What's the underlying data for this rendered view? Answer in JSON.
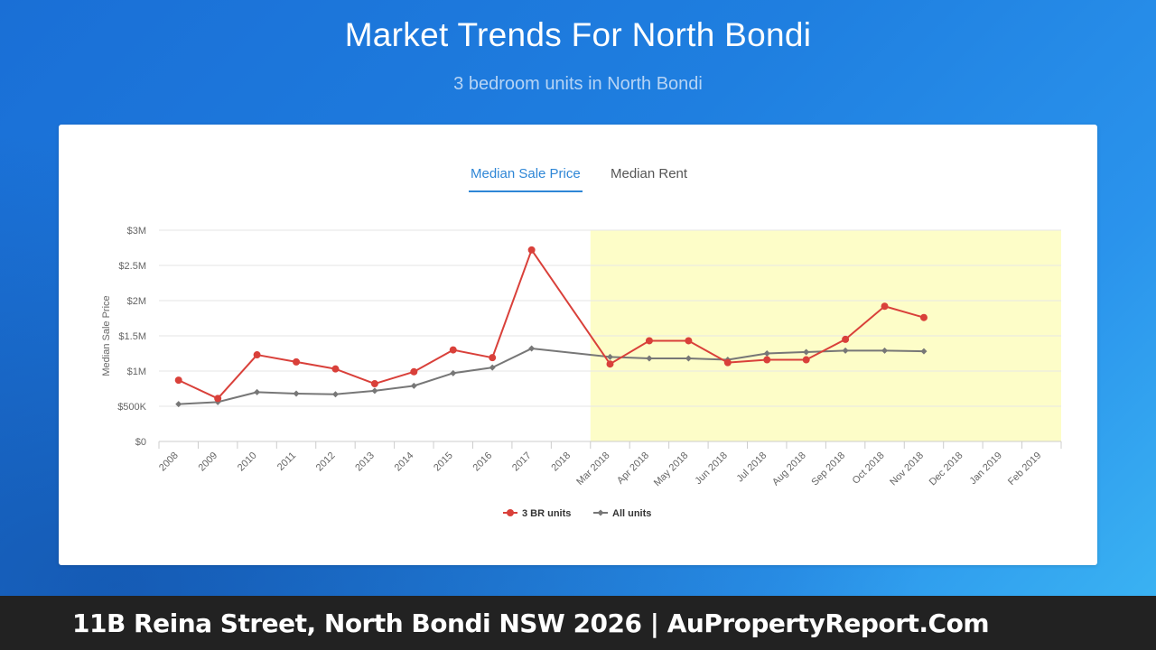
{
  "header": {
    "title": "Market Trends For North Bondi",
    "subtitle": "3 bedroom units in North Bondi"
  },
  "tabs": [
    {
      "label": "Median Sale Price",
      "active": true
    },
    {
      "label": "Median Rent",
      "active": false
    }
  ],
  "footer": {
    "text": "11B Reina Street, North Bondi NSW 2026 | AuPropertyReport.Com"
  },
  "chart_data": {
    "type": "line",
    "ylabel": "Median Sale Price",
    "yticks": [
      "$0",
      "$500K",
      "$1M",
      "$1.5M",
      "$2M",
      "$2.5M",
      "$3M"
    ],
    "ylim": [
      0,
      3000000
    ],
    "categories": [
      "2008",
      "2009",
      "2010",
      "2011",
      "2012",
      "2013",
      "2014",
      "2015",
      "2016",
      "2017",
      "2018",
      "Mar 2018",
      "Apr 2018",
      "May 2018",
      "Jun 2018",
      "Jul 2018",
      "Aug 2018",
      "Sep 2018",
      "Oct 2018",
      "Nov 2018",
      "Dec 2018",
      "Jan 2019",
      "Feb 2019"
    ],
    "highlight_from_category": "Mar 2018",
    "highlight_color": "#fdfdc8",
    "grid": true,
    "legend_position": "bottom",
    "series": [
      {
        "name": "3 BR units",
        "color": "#d9403a",
        "marker": "circle",
        "values": [
          870000,
          610000,
          1230000,
          1130000,
          1030000,
          820000,
          990000,
          1300000,
          1190000,
          2720000,
          null,
          1100000,
          1430000,
          1430000,
          1120000,
          1160000,
          1160000,
          1450000,
          1920000,
          1760000,
          null,
          null,
          null
        ]
      },
      {
        "name": "All units",
        "color": "#777777",
        "marker": "diamond",
        "values": [
          530000,
          560000,
          700000,
          680000,
          670000,
          720000,
          790000,
          970000,
          1050000,
          1320000,
          null,
          1200000,
          1180000,
          1180000,
          1160000,
          1250000,
          1270000,
          1290000,
          1290000,
          1280000,
          null,
          null,
          null
        ]
      }
    ]
  }
}
